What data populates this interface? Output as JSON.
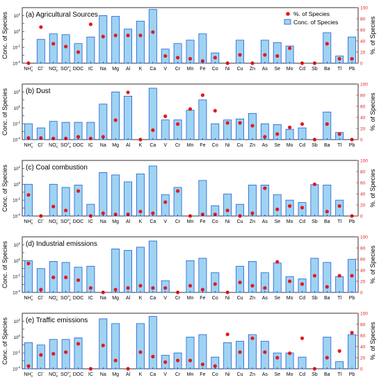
{
  "figure": {
    "ylabel_left": "Conc. of Species",
    "ylabel_right": "%. of Species",
    "legend": {
      "pct_label": "%. of Species",
      "conc_label": "Conc. of Species"
    }
  },
  "colors": {
    "bar_fill": "#9fd3f2",
    "bar_stroke": "#1f5fd6",
    "dot": "#e41a1c",
    "right_axis": "#e41a1c",
    "left_axis": "#1f2fa8"
  },
  "chart_data": [
    {
      "type": "bar",
      "title": "(a) Agricultural Sources",
      "categories": [
        "NH4+",
        "Cl-",
        "NO3-",
        "SO4 2-",
        "DOC",
        "IC",
        "Na",
        "Mg",
        "Al",
        "K",
        "Ca",
        "V",
        "Cr",
        "Mn",
        "Fe",
        "Co",
        "Ni",
        "Cu",
        "Zn",
        "As",
        "Se",
        "Mo",
        "Cd",
        "Sb",
        "Ba",
        "Tl",
        "Pb"
      ],
      "y_scale": "log",
      "ylim": [
        0.0001,
        1000
      ],
      "y2lim": [
        0,
        100
      ],
      "series": [
        {
          "name": "Conc. of Species",
          "kind": "bar",
          "values": [
            null,
            0.1,
            0.5,
            0.4,
            0.03,
            0.2,
            100,
            80,
            2,
            20,
            600,
            0.006,
            0.03,
            0.08,
            0.5,
            0.002,
            null,
            0.08,
            null,
            0.08,
            0.04,
            0.015,
            null,
            null,
            0.7,
            0.0008,
            0.2
          ]
        },
        {
          "name": "%. of Species",
          "kind": "scatter",
          "values": [
            0,
            65,
            35,
            30,
            20,
            70,
            48,
            50,
            50,
            50,
            56,
            13,
            10,
            8,
            4,
            10,
            0,
            15,
            0,
            15,
            13,
            27,
            0,
            0,
            35,
            8,
            8
          ]
        }
      ]
    },
    {
      "type": "bar",
      "title": "(b) Dust",
      "categories": [
        "NH4+",
        "Cl-",
        "NO3-",
        "SO4 2-",
        "DOC",
        "IC",
        "Na",
        "Mg",
        "Al",
        "K",
        "Ca",
        "V",
        "Cr",
        "Mn",
        "Fe",
        "Co",
        "Ni",
        "Cu",
        "Zn",
        "As",
        "Se",
        "Mo",
        "Cd",
        "Sb",
        "Ba",
        "Tl",
        "Pb"
      ],
      "y_scale": "log",
      "ylim": [
        0.0001,
        1000
      ],
      "y2lim": [
        0,
        100
      ],
      "series": [
        {
          "name": "Conc. of Species",
          "kind": "bar",
          "values": [
            0.01,
            0.003,
            0.02,
            0.015,
            0.015,
            0.015,
            3,
            100,
            30,
            null,
            300,
            0.03,
            0.03,
            0.5,
            10,
            0.01,
            0.03,
            0.04,
            0.2,
            0.01,
            0.008,
            0.002,
            0.003,
            null,
            0.3,
            0.0008,
            null
          ]
        },
        {
          "name": "%. of Species",
          "kind": "scatter",
          "values": [
            3,
            3,
            2,
            2,
            5,
            2,
            5,
            35,
            85,
            0,
            17,
            42,
            28,
            55,
            80,
            52,
            30,
            30,
            25,
            5,
            10,
            22,
            28,
            0,
            28,
            10,
            0
          ]
        }
      ]
    },
    {
      "type": "bar",
      "title": "(c) Coal combustion",
      "categories": [
        "NH4+",
        "Cl-",
        "NO3-",
        "SO4 2-",
        "DOC",
        "IC",
        "Na",
        "Mg",
        "Al",
        "K",
        "Ca",
        "V",
        "Cr",
        "Mn",
        "Fe",
        "Co",
        "Ni",
        "Cu",
        "Zn",
        "As",
        "Se",
        "Mo",
        "Cd",
        "Sb",
        "Ba",
        "Tl",
        "Pb"
      ],
      "y_scale": "log",
      "ylim": [
        0.0001,
        1000
      ],
      "y2lim": [
        0,
        100
      ],
      "series": [
        {
          "name": "Conc. of Species",
          "kind": "bar",
          "values": [
            1,
            null,
            1,
            0.4,
            0.8,
            0.003,
            30,
            15,
            2,
            20,
            200,
            0.05,
            0.4,
            null,
            3,
            0.002,
            0.06,
            0.003,
            0.8,
            0.8,
            0.05,
            0.01,
            0.005,
            0.9,
            0.8,
            0.01,
            null
          ]
        },
        {
          "name": "%. of Species",
          "kind": "scatter",
          "values": [
            38,
            0,
            17,
            10,
            45,
            0,
            5,
            3,
            3,
            8,
            5,
            25,
            45,
            0,
            3,
            3,
            10,
            0,
            5,
            50,
            12,
            18,
            15,
            57,
            8,
            18,
            0
          ]
        }
      ]
    },
    {
      "type": "bar",
      "title": "(d) Industrial emissions",
      "categories": [
        "NH4+",
        "Cl-",
        "NO3-",
        "SO4 2-",
        "DOC",
        "IC",
        "Na",
        "Mg",
        "Al",
        "K",
        "Ca",
        "V",
        "Cr",
        "Mn",
        "Fe",
        "Co",
        "Ni",
        "Cu",
        "Zn",
        "As",
        "Se",
        "Mo",
        "Cd",
        "Sb",
        "Ba",
        "Tl",
        "Pb"
      ],
      "y_scale": "log",
      "ylim": [
        0.0001,
        1000
      ],
      "y2lim": [
        0,
        100
      ],
      "series": [
        {
          "name": "Conc. of Species",
          "kind": "bar",
          "values": [
            1,
            0.1,
            0.8,
            0.6,
            0.15,
            0.2,
            null,
            30,
            20,
            50,
            300,
            0.003,
            null,
            1,
            2,
            0.03,
            null,
            0.2,
            0.8,
            0.03,
            0.5,
            0.01,
            0.005,
            2,
            0.6,
            0.01,
            1.5
          ]
        },
        {
          "name": "%. of Species",
          "kind": "scatter",
          "values": [
            52,
            5,
            27,
            27,
            22,
            8,
            0,
            5,
            8,
            12,
            8,
            8,
            0,
            12,
            5,
            15,
            0,
            18,
            12,
            8,
            55,
            20,
            15,
            30,
            10,
            30,
            30
          ]
        }
      ]
    },
    {
      "type": "bar",
      "title": "(e) Traffic emissions",
      "categories": [
        "NH4+",
        "Cl-",
        "NO3-",
        "SO4 2-",
        "DOC",
        "IC",
        "Na",
        "Mg",
        "Al",
        "K",
        "Ca",
        "V",
        "Cr",
        "Mn",
        "Fe",
        "Co",
        "Ni",
        "Cu",
        "Zn",
        "As",
        "Se",
        "Mo",
        "Cd",
        "Sb",
        "Ba",
        "Tl",
        "Pb"
      ],
      "y_scale": "log",
      "ylim": [
        0.0001,
        1000
      ],
      "y2lim": [
        0,
        100
      ],
      "series": [
        {
          "name": "Conc. of Species",
          "kind": "bar",
          "values": [
            0.2,
            0.1,
            0.5,
            0.5,
            0.8,
            null,
            200,
            50,
            null,
            50,
            400,
            0.005,
            0.01,
            1,
            2,
            0.003,
            0.2,
            0.3,
            2,
            0.3,
            0.01,
            0.01,
            0.003,
            null,
            1,
            0.0008,
            2
          ]
        },
        {
          "name": "%. of Species",
          "kind": "scatter",
          "values": [
            5,
            25,
            27,
            30,
            45,
            0,
            42,
            15,
            0,
            30,
            22,
            12,
            15,
            15,
            8,
            5,
            62,
            30,
            55,
            30,
            20,
            28,
            55,
            0,
            20,
            32,
            65
          ]
        }
      ]
    }
  ]
}
